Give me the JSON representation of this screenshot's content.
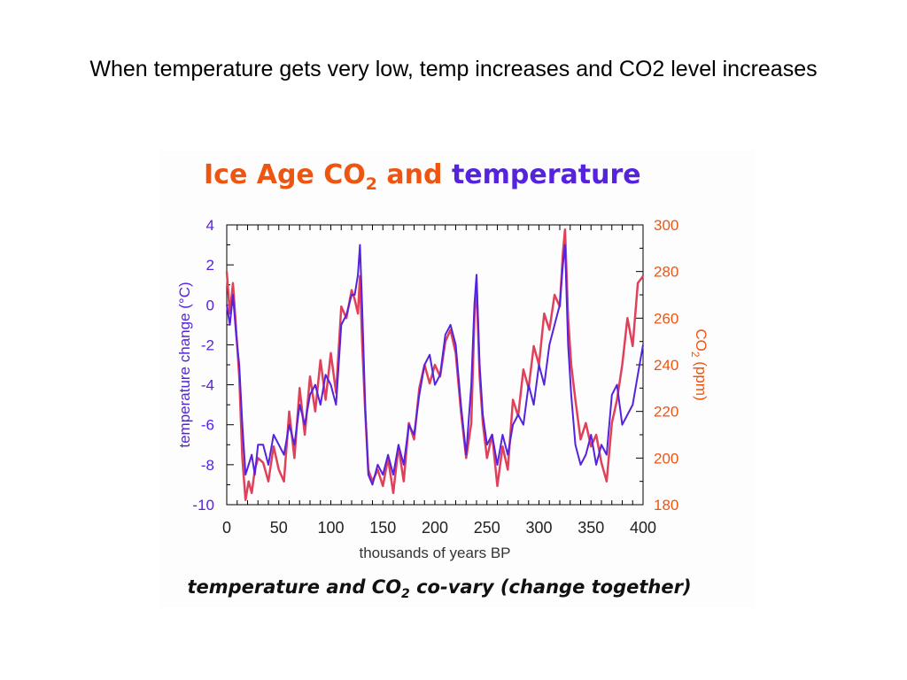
{
  "slide": {
    "title": "When temperature gets very low, temp increases and CO2 level increases"
  },
  "figure": {
    "heading_part1": "Ice Age CO",
    "heading_sub": "2",
    "heading_part2": " and ",
    "heading_part3": "temperature",
    "caption_part1": "temperature and CO",
    "caption_sub": "2",
    "caption_part2": " co-vary (change together)",
    "colors": {
      "temperature": "#5522dd",
      "co2": "#e0415a",
      "heading_co2": "#ee5511",
      "axis": "#000000"
    }
  },
  "chart_data": {
    "type": "line",
    "xlabel": "thousands of years BP",
    "ylabel_left": "temperature change (°C)",
    "ylabel_right_main": "CO",
    "ylabel_right_sub": "2",
    "ylabel_right_unit": " (ppm)",
    "xlim": [
      0,
      400
    ],
    "ylim_left": [
      -10,
      4
    ],
    "ylim_right": [
      180,
      300
    ],
    "x_ticks": [
      0,
      50,
      100,
      150,
      200,
      250,
      300,
      350,
      400
    ],
    "y_ticks_left": [
      -10,
      -8,
      -6,
      -4,
      -2,
      0,
      2,
      4
    ],
    "y_ticks_right": [
      180,
      200,
      220,
      240,
      260,
      280,
      300
    ],
    "grid": false,
    "series": [
      {
        "axis": "left",
        "x": [
          0,
          3,
          6,
          9,
          12,
          15,
          18,
          21,
          24,
          27,
          30,
          35,
          40,
          45,
          50,
          55,
          60,
          65,
          70,
          75,
          80,
          85,
          90,
          95,
          100,
          105,
          110,
          115,
          120,
          123,
          126,
          128,
          130,
          133,
          136,
          140,
          145,
          150,
          155,
          160,
          165,
          170,
          175,
          180,
          185,
          190,
          195,
          200,
          205,
          210,
          215,
          220,
          225,
          230,
          235,
          238,
          240,
          243,
          246,
          250,
          255,
          260,
          265,
          270,
          275,
          280,
          285,
          290,
          295,
          300,
          305,
          310,
          315,
          320,
          323,
          325,
          328,
          331,
          335,
          340,
          345,
          350,
          355,
          360,
          365,
          370,
          375,
          380,
          385,
          390,
          395,
          400
        ],
        "y": [
          0,
          -1,
          0.5,
          -1.5,
          -3,
          -6,
          -8.5,
          -8,
          -7.5,
          -8.5,
          -7,
          -7,
          -8,
          -6.5,
          -7,
          -7.5,
          -6,
          -7,
          -5,
          -6,
          -4.5,
          -4,
          -5,
          -3.5,
          -4,
          -5,
          -1,
          -0.5,
          0.5,
          0.5,
          1.5,
          3,
          0,
          -5,
          -8.5,
          -9,
          -8,
          -8.5,
          -7.5,
          -8.5,
          -7,
          -8,
          -6,
          -6.5,
          -4.5,
          -3,
          -2.5,
          -4,
          -3.5,
          -1.5,
          -1,
          -2,
          -5,
          -7.5,
          -4,
          0,
          1.5,
          -3,
          -5.5,
          -7,
          -6.5,
          -8,
          -6.5,
          -7.5,
          -6,
          -5.5,
          -6,
          -4,
          -5,
          -3,
          -4,
          -2,
          -1,
          0,
          2,
          3,
          -2,
          -4.5,
          -7,
          -8,
          -7.5,
          -6.5,
          -8,
          -7,
          -7.5,
          -4.5,
          -4,
          -6,
          -5.5,
          -5,
          -3.5,
          -2
        ]
      },
      {
        "axis": "right",
        "x": [
          0,
          3,
          6,
          9,
          12,
          15,
          18,
          21,
          24,
          27,
          30,
          35,
          40,
          45,
          50,
          55,
          60,
          65,
          70,
          75,
          80,
          85,
          90,
          95,
          100,
          105,
          110,
          115,
          120,
          123,
          126,
          128,
          130,
          133,
          136,
          140,
          145,
          150,
          155,
          160,
          165,
          170,
          175,
          180,
          185,
          190,
          195,
          200,
          205,
          210,
          215,
          220,
          225,
          230,
          235,
          238,
          240,
          243,
          246,
          250,
          255,
          260,
          265,
          270,
          275,
          280,
          285,
          290,
          295,
          300,
          305,
          310,
          315,
          320,
          323,
          325,
          328,
          331,
          335,
          340,
          345,
          350,
          355,
          360,
          365,
          370,
          375,
          380,
          385,
          390,
          395,
          400
        ],
        "y": [
          280,
          262,
          275,
          255,
          235,
          200,
          182,
          190,
          185,
          195,
          200,
          198,
          190,
          205,
          195,
          190,
          220,
          200,
          230,
          210,
          235,
          220,
          242,
          225,
          245,
          228,
          265,
          260,
          272,
          268,
          262,
          278,
          250,
          220,
          195,
          190,
          195,
          188,
          200,
          185,
          205,
          190,
          215,
          208,
          230,
          240,
          232,
          240,
          235,
          250,
          255,
          245,
          220,
          200,
          215,
          260,
          275,
          235,
          215,
          200,
          210,
          188,
          205,
          195,
          225,
          218,
          238,
          230,
          248,
          240,
          262,
          255,
          270,
          265,
          288,
          298,
          260,
          240,
          225,
          208,
          215,
          205,
          210,
          198,
          190,
          215,
          225,
          240,
          260,
          248,
          275,
          278
        ]
      }
    ]
  }
}
